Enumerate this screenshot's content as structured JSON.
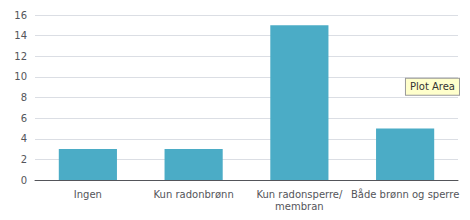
{
  "chart_data": {
    "type": "bar",
    "categories": [
      "Ingen",
      "Kun radonbrønn",
      "Kun radonsperre/\nmembran",
      "Både brønn og sperre"
    ],
    "values": [
      3,
      3,
      15,
      5
    ],
    "color": "#4bacc6",
    "ylim": [
      0,
      16
    ],
    "yticks": [
      0,
      2,
      4,
      6,
      8,
      10,
      12,
      14,
      16
    ],
    "grid": true,
    "annotations": [
      "Plot Area"
    ]
  }
}
